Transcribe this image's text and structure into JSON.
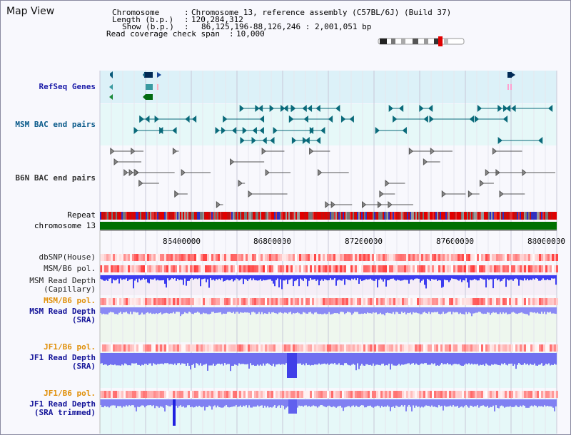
{
  "title": "Map View",
  "info": {
    "chromosome_label": "Chromosome",
    "chromosome_value": "Chromosome 13, reference assembly (C57BL/6J) (Build 37)",
    "length_label": "Length (b.p.)",
    "length_value": "120,284,312",
    "show_label": "Show (b.p.)",
    "show_value": "86,125,196-88,126,246 : 2,001,051 bp",
    "coverage_label": "Read coverage check span",
    "coverage_value": "10,000"
  },
  "tracks": {
    "refseq": "RefSeq Genes",
    "msm_bac": "MSM BAC end pairs",
    "b6n_bac": "B6N BAC end pairs",
    "repeat": "Repeat",
    "chromosome": "chromosome 13",
    "dbsnp": "dbSNP(House)",
    "msm_b6_pol": "MSM/B6 pol.",
    "msm_depth_cap": "MSM Read Depth\n(Capillary)",
    "msm_b6_pol2": "MSM/B6 pol.",
    "msm_depth_sra": "MSM Read Depth\n(SRA)",
    "jf1_b6_pol": "JF1/B6 pol.",
    "jf1_depth_sra": "JF1 Read Depth\n(SRA)",
    "jf1_b6_pol2": "JF1/B6 pol.",
    "jf1_depth_trim": "JF1 Read Depth\n(SRA trimmed)"
  },
  "axis": {
    "ticks": [
      "86400000",
      "86800000",
      "87200000",
      "87600000",
      "88000000"
    ]
  },
  "colors": {
    "refseq_bg": "#dcf1f8",
    "msm_bg": "#e6f8f8",
    "depth_blue": "#3c3cf0",
    "depth_light": "#8a8af5",
    "snp_red": "#e85050",
    "chrom_green": "#007000"
  }
}
